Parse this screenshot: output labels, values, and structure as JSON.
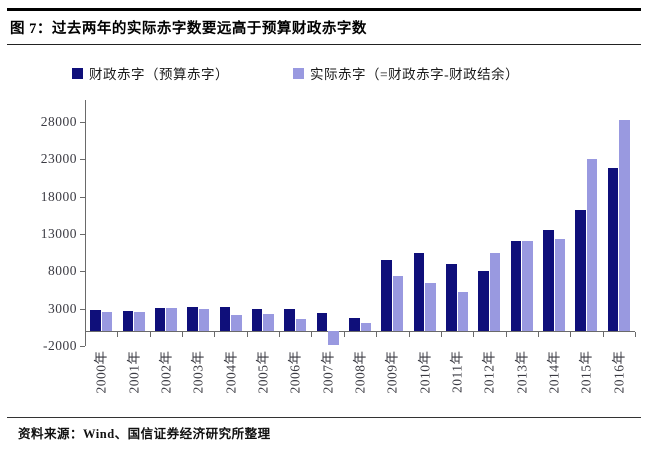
{
  "header": {
    "title": "图 7：过去两年的实际赤字数要远高于预算财政赤字数"
  },
  "footer": {
    "source": "资料来源：Wind、国信证券经济研究所整理"
  },
  "chart_data": {
    "type": "bar",
    "title": "过去两年的实际赤字数要远高于预算财政赤字数",
    "xlabel": "",
    "ylabel": "",
    "ylim": [
      -2000,
      28000
    ],
    "yticks": [
      -2000,
      3000,
      8000,
      13000,
      18000,
      23000,
      28000
    ],
    "grid": false,
    "legend_position": "top",
    "axis_color": "#6a6a6a",
    "label_color": "#3a3a42",
    "categories": [
      "2000年",
      "2001年",
      "2002年",
      "2003年",
      "2004年",
      "2005年",
      "2006年",
      "2007年",
      "2008年",
      "2009年",
      "2010年",
      "2011年",
      "2012年",
      "2013年",
      "2014年",
      "2015年",
      "2016年"
    ],
    "series": [
      {
        "name": "财政赤字（预算赤字）",
        "color": "#0f0f7a",
        "values": [
          2850,
          2750,
          3100,
          3250,
          3200,
          3000,
          2900,
          2450,
          1800,
          9500,
          10500,
          9000,
          8000,
          12000,
          13500,
          16200,
          21800
        ]
      },
      {
        "name": "实际赤字（=财政赤字-财政结余）",
        "color": "#9999e0",
        "values": [
          2600,
          2600,
          3050,
          2950,
          2100,
          2300,
          1600,
          -1800,
          1100,
          7400,
          6500,
          5200,
          10500,
          12000,
          12300,
          23100,
          28300
        ]
      }
    ]
  }
}
